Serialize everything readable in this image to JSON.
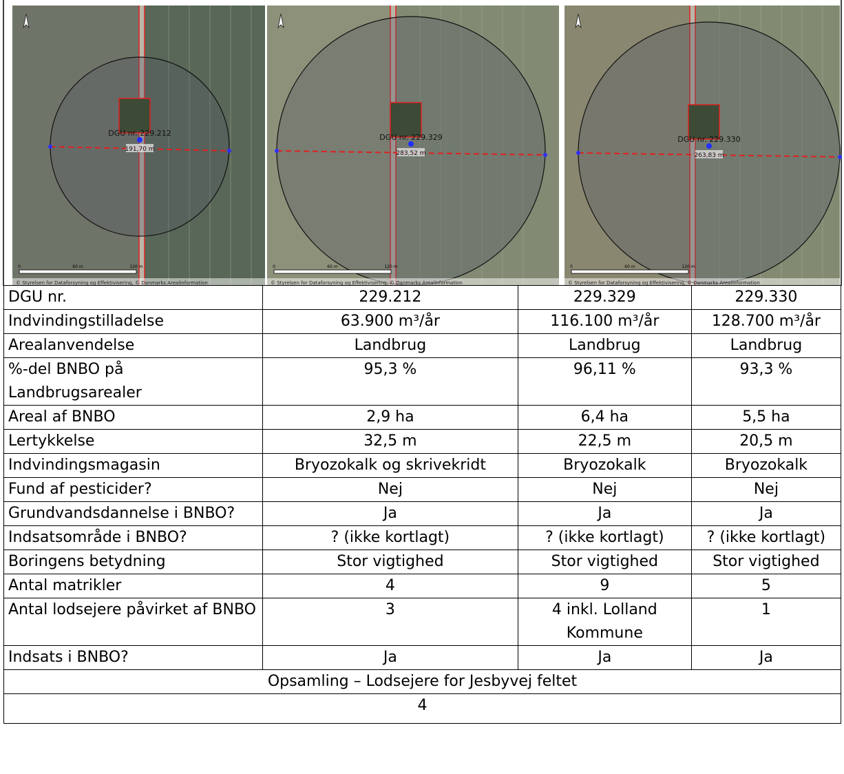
{
  "maps": [
    {
      "label": "DGU nr. 229.212",
      "distance": "191,70 m",
      "scale": [
        "0",
        "60 m",
        "120 m"
      ],
      "copyright": "© Styrelsen for Dataforsyning og Effektivisering, © Danmarks Arealinformation"
    },
    {
      "label": "DGU nr. 229.329",
      "distance": "283,52 m",
      "scale": [
        "0",
        "60 m",
        "120 m"
      ],
      "copyright": "© Styrelsen for Dataforsyning og Effektivisering, © Danmarks Arealinformation"
    },
    {
      "label": "DGU nr. 229.330",
      "distance": "263,83 m",
      "scale": [
        "0",
        "60 m",
        "120 m"
      ],
      "copyright": "© Styrelsen for Dataforsyning og Effektivisering, © Danmarks Arealinformation"
    }
  ],
  "table": {
    "rows": [
      [
        "DGU nr.",
        "229.212",
        "229.329",
        "229.330"
      ],
      [
        "Indvindingstilladelse",
        "63.900 m³/år",
        "116.100 m³/år",
        "128.700 m³/år"
      ],
      [
        "Arealanvendelse",
        "Landbrug",
        "Landbrug",
        "Landbrug"
      ],
      [
        "%-del BNBO på Landbrugsarealer",
        "95,3 %",
        "96,11 %",
        "93,3 %"
      ],
      [
        "Areal af BNBO",
        "2,9 ha",
        "6,4 ha",
        "5,5 ha"
      ],
      [
        "Lertykkelse",
        "32,5 m",
        "22,5 m",
        "20,5 m"
      ],
      [
        "Indvindingsmagasin",
        "Bryozokalk og skrivekridt",
        "Bryozokalk",
        "Bryozokalk"
      ],
      [
        "Fund af pesticider?",
        "Nej",
        "Nej",
        "Nej"
      ],
      [
        "Grundvandsdannelse i BNBO?",
        "Ja",
        "Ja",
        "Ja"
      ],
      [
        "Indsatsområde i BNBO?",
        "? (ikke kortlagt)",
        "? (ikke kortlagt)",
        "? (ikke kortlagt)"
      ],
      [
        "Boringens betydning",
        "Stor vigtighed",
        "Stor vigtighed",
        "Stor vigtighed"
      ],
      [
        "Antal matrikler",
        "4",
        "9",
        "5"
      ],
      [
        "Antal lodsejere påvirket af BNBO",
        "3",
        "4 inkl. Lolland Kommune",
        "1"
      ],
      [
        "Indsats i BNBO?",
        "Ja",
        "Ja",
        "Ja"
      ]
    ],
    "summary": "Opsamling – Lodsejere for Jesbyvej feltet",
    "page": "4"
  }
}
